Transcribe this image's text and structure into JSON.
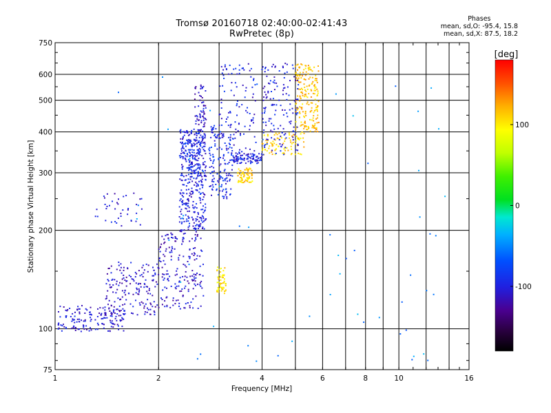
{
  "title_line1": "Tromsø 20160718 02:40:00-02:41:43",
  "title_line2": "RwPretec (8p)",
  "stats": {
    "heading": "Phases",
    "line_o": "mean, sd,O: -95.4, 15.8",
    "line_x": "mean, sd,X: 87.5, 18.2"
  },
  "colorbar": {
    "unit_label": "[deg]",
    "tick_labels": [
      "100",
      "0",
      "-100"
    ],
    "tick_values": [
      100,
      0,
      -100
    ],
    "min": -180,
    "max": 180
  },
  "chart_data": {
    "type": "scatter",
    "xlabel": "Frequency [MHz]",
    "ylabel": "Stationary phase Virtual Height [km]",
    "xscale": "log",
    "yscale": "log",
    "xlim": [
      1,
      16
    ],
    "ylim": [
      75,
      750
    ],
    "x_ticks": [
      1,
      2,
      4,
      6,
      8,
      10,
      16
    ],
    "x_tick_labels": [
      "1",
      "2",
      "4",
      "6",
      "8",
      "10",
      "16"
    ],
    "x_minor_ticks": [
      3,
      5,
      7,
      9,
      12,
      14
    ],
    "y_ticks": [
      75,
      100,
      200,
      300,
      400,
      500,
      600,
      750
    ],
    "y_tick_labels": [
      "75",
      "100",
      "200",
      "300",
      "400",
      "500",
      "600",
      "750"
    ],
    "grid": true,
    "color_encodes": "phase [deg]",
    "traces": [
      {
        "phase": -105,
        "x_range": [
          1.02,
          1.6
        ],
        "y_range": [
          98,
          118
        ],
        "count": 160
      },
      {
        "phase": -110,
        "x_range": [
          1.4,
          2.0
        ],
        "y_range": [
          110,
          160
        ],
        "count": 170
      },
      {
        "phase": -108,
        "x_range": [
          2.0,
          2.7
        ],
        "y_range": [
          115,
          200
        ],
        "count": 200
      },
      {
        "phase": -100,
        "x_range": [
          2.3,
          2.75
        ],
        "y_range": [
          200,
          410
        ],
        "count": 380
      },
      {
        "phase": -90,
        "x_range": [
          2.35,
          2.65
        ],
        "y_range": [
          300,
          380
        ],
        "count": 70
      },
      {
        "phase": -110,
        "x_range": [
          2.55,
          2.75
        ],
        "y_range": [
          410,
          560
        ],
        "count": 60
      },
      {
        "phase": -95,
        "x_range": [
          2.8,
          3.3
        ],
        "y_range": [
          250,
          420
        ],
        "count": 150
      },
      {
        "phase": -105,
        "x_range": [
          1.3,
          1.8
        ],
        "y_range": [
          205,
          260
        ],
        "count": 40
      },
      {
        "phase": 105,
        "x_range": [
          2.95,
          3.15
        ],
        "y_range": [
          128,
          155
        ],
        "count": 55
      },
      {
        "phase": 110,
        "x_range": [
          3.4,
          3.75
        ],
        "y_range": [
          280,
          310
        ],
        "count": 70
      },
      {
        "phase": 110,
        "x_range": [
          4.0,
          5.3
        ],
        "y_range": [
          340,
          400
        ],
        "count": 90
      },
      {
        "phase": 115,
        "x_range": [
          5.0,
          5.85
        ],
        "y_range": [
          400,
          650
        ],
        "count": 200
      },
      {
        "phase": -100,
        "x_range": [
          3.3,
          4.0
        ],
        "y_range": [
          320,
          345
        ],
        "count": 90
      },
      {
        "phase": -100,
        "x_range": [
          4.0,
          5.1
        ],
        "y_range": [
          340,
          650
        ],
        "count": 150
      },
      {
        "phase": -100,
        "x_range": [
          3.0,
          3.85
        ],
        "y_range": [
          340,
          650
        ],
        "count": 110
      },
      {
        "phase": -50,
        "x_range": [
          1.5,
          14
        ],
        "y_range": [
          78,
          600
        ],
        "count": 60
      }
    ]
  }
}
